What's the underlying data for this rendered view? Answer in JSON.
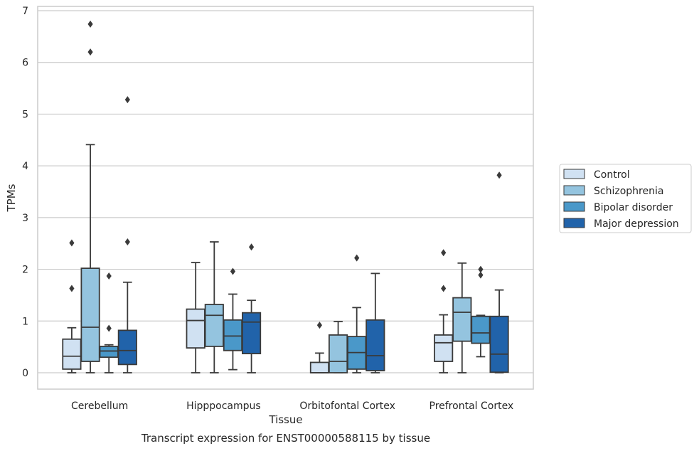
{
  "chart_data": {
    "type": "boxplot",
    "title": "Transcript expression for ENST00000588115 by tissue",
    "xlabel": "Tissue",
    "ylabel": "TPMs",
    "ylim": [
      -0.32,
      7.1
    ],
    "yticks": [
      0,
      1,
      2,
      3,
      4,
      5,
      6,
      7
    ],
    "grid": "horizontal",
    "legend_position": "right",
    "categories": [
      "Cerebellum",
      "Hipppocampus",
      "Orbitofontal Cortex",
      "Prefrontal Cortex"
    ],
    "series": [
      {
        "name": "Control",
        "color": "#d0e1f2",
        "boxes": [
          {
            "whislo": 0.0,
            "q1": 0.07,
            "med": 0.32,
            "q3": 0.65,
            "whishi": 0.87,
            "fliers": [
              1.63,
              2.51
            ]
          },
          {
            "whislo": 0.0,
            "q1": 0.48,
            "med": 1.01,
            "q3": 1.23,
            "whishi": 2.13,
            "fliers": []
          },
          {
            "whislo": 0.0,
            "q1": 0.0,
            "med": 0.0,
            "q3": 0.2,
            "whishi": 0.38,
            "fliers": [
              0.92
            ]
          },
          {
            "whislo": 0.0,
            "q1": 0.22,
            "med": 0.58,
            "q3": 0.73,
            "whishi": 1.12,
            "fliers": [
              1.63,
              2.32
            ]
          }
        ]
      },
      {
        "name": "Schizophrenia",
        "color": "#94c4df",
        "boxes": [
          {
            "whislo": 0.0,
            "q1": 0.22,
            "med": 0.88,
            "q3": 2.02,
            "whishi": 4.41,
            "fliers": [
              6.2,
              6.74
            ]
          },
          {
            "whislo": 0.0,
            "q1": 0.51,
            "med": 1.11,
            "q3": 1.32,
            "whishi": 2.53,
            "fliers": []
          },
          {
            "whislo": 0.0,
            "q1": 0.0,
            "med": 0.22,
            "q3": 0.73,
            "whishi": 0.99,
            "fliers": []
          },
          {
            "whislo": 0.0,
            "q1": 0.61,
            "med": 1.17,
            "q3": 1.45,
            "whishi": 2.12,
            "fliers": []
          }
        ]
      },
      {
        "name": "Bipolar disorder",
        "color": "#4a98c9",
        "boxes": [
          {
            "whislo": 0.0,
            "q1": 0.3,
            "med": 0.42,
            "q3": 0.51,
            "whishi": 0.54,
            "fliers": [
              0.86,
              1.87
            ]
          },
          {
            "whislo": 0.06,
            "q1": 0.43,
            "med": 0.71,
            "q3": 1.02,
            "whishi": 1.52,
            "fliers": [
              1.96
            ]
          },
          {
            "whislo": 0.0,
            "q1": 0.07,
            "med": 0.39,
            "q3": 0.7,
            "whishi": 1.26,
            "fliers": [
              2.22
            ]
          },
          {
            "whislo": 0.31,
            "q1": 0.57,
            "med": 0.77,
            "q3": 1.09,
            "whishi": 1.11,
            "fliers": [
              1.89,
              2.0
            ]
          }
        ]
      },
      {
        "name": "Major depression",
        "color": "#2163aa",
        "boxes": [
          {
            "whislo": 0.0,
            "q1": 0.16,
            "med": 0.43,
            "q3": 0.82,
            "whishi": 1.75,
            "fliers": [
              2.53,
              5.28
            ]
          },
          {
            "whislo": 0.0,
            "q1": 0.37,
            "med": 0.98,
            "q3": 1.16,
            "whishi": 1.4,
            "fliers": [
              2.43
            ]
          },
          {
            "whislo": 0.0,
            "q1": 0.04,
            "med": 0.33,
            "q3": 1.02,
            "whishi": 1.92,
            "fliers": []
          },
          {
            "whislo": 0.0,
            "q1": 0.01,
            "med": 0.36,
            "q3": 1.09,
            "whishi": 1.6,
            "fliers": [
              3.82
            ]
          }
        ]
      }
    ]
  }
}
